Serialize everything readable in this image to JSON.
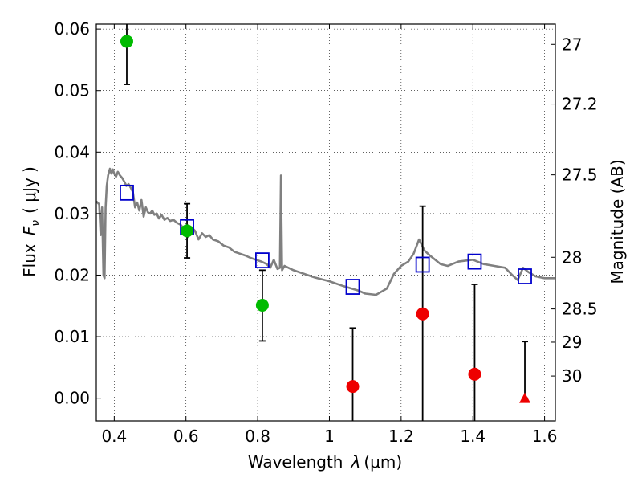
{
  "chart_data": {
    "type": "scatter",
    "xlabel_text": "Wavelength",
    "xlabel_symbol": "λ",
    "xlabel_units": "(μm)",
    "ylabel_text": "Flux",
    "ylabel_symbol": "F",
    "ylabel_subscript": "ν",
    "ylabel_units": "( μJy )",
    "y2label": "Magnitude (AB)",
    "xlim": [
      0.35,
      1.63
    ],
    "ylim": [
      -0.0037,
      0.0608
    ],
    "x_ticks": [
      0.4,
      0.6,
      0.8,
      1.0,
      1.2,
      1.4,
      1.6
    ],
    "x_tick_labels": [
      "0.4",
      "0.6",
      "0.8",
      "1",
      "1.2",
      "1.4",
      "1.6"
    ],
    "y_ticks": [
      0.0,
      0.01,
      0.02,
      0.03,
      0.04,
      0.05,
      0.06
    ],
    "y_tick_labels": [
      "0.00",
      "0.01",
      "0.02",
      "0.03",
      "0.04",
      "0.05",
      "0.06"
    ],
    "y2_ticks": [
      {
        "label": "27",
        "flux": 0.0575
      },
      {
        "label": "27.2",
        "flux": 0.0478
      },
      {
        "label": "27.5",
        "flux": 0.0363
      },
      {
        "label": "28",
        "flux": 0.0229
      },
      {
        "label": "28.5",
        "flux": 0.0145
      },
      {
        "label": "29",
        "flux": 0.0091
      },
      {
        "label": "30",
        "flux": 0.0036
      }
    ],
    "grid": true,
    "colors": {
      "spectrum": "#808080",
      "model_markers": "#0000cc",
      "detections": "#00bb00",
      "nondetections": "#ee0000",
      "errorbars": "#000000"
    },
    "spectrum": {
      "x": [
        0.35,
        0.358,
        0.362,
        0.366,
        0.37,
        0.373,
        0.376,
        0.379,
        0.383,
        0.388,
        0.392,
        0.396,
        0.4,
        0.405,
        0.41,
        0.416,
        0.422,
        0.428,
        0.434,
        0.44,
        0.446,
        0.452,
        0.458,
        0.464,
        0.47,
        0.476,
        0.482,
        0.488,
        0.494,
        0.5,
        0.506,
        0.512,
        0.518,
        0.525,
        0.532,
        0.54,
        0.548,
        0.556,
        0.565,
        0.575,
        0.585,
        0.595,
        0.605,
        0.615,
        0.625,
        0.635,
        0.645,
        0.655,
        0.665,
        0.675,
        0.69,
        0.705,
        0.72,
        0.735,
        0.75,
        0.765,
        0.78,
        0.795,
        0.81,
        0.825,
        0.835,
        0.845,
        0.855,
        0.862,
        0.865,
        0.868,
        0.875,
        0.9,
        0.93,
        0.96,
        1.0,
        1.04,
        1.08,
        1.1,
        1.13,
        1.16,
        1.18,
        1.2,
        1.22,
        1.235,
        1.25,
        1.265,
        1.28,
        1.295,
        1.31,
        1.33,
        1.36,
        1.4,
        1.43,
        1.46,
        1.49,
        1.51,
        1.525,
        1.54,
        1.555,
        1.575,
        1.6,
        1.63
      ],
      "y": [
        0.032,
        0.0315,
        0.0265,
        0.031,
        0.02,
        0.0195,
        0.031,
        0.0345,
        0.0362,
        0.0373,
        0.0365,
        0.0372,
        0.0365,
        0.036,
        0.0368,
        0.0362,
        0.0358,
        0.0352,
        0.0345,
        0.0348,
        0.0342,
        0.0335,
        0.031,
        0.0318,
        0.0305,
        0.0322,
        0.0295,
        0.031,
        0.0302,
        0.03,
        0.0305,
        0.0298,
        0.03,
        0.0292,
        0.0298,
        0.029,
        0.0293,
        0.0288,
        0.029,
        0.0285,
        0.0282,
        0.0275,
        0.0262,
        0.0278,
        0.0272,
        0.0258,
        0.0268,
        0.0262,
        0.0265,
        0.0258,
        0.0255,
        0.0248,
        0.0245,
        0.0238,
        0.0235,
        0.0232,
        0.0228,
        0.0225,
        0.0222,
        0.0218,
        0.0212,
        0.0225,
        0.021,
        0.0212,
        0.0362,
        0.0208,
        0.0215,
        0.0208,
        0.0202,
        0.0196,
        0.019,
        0.0182,
        0.0175,
        0.017,
        0.0168,
        0.0178,
        0.0202,
        0.0215,
        0.0222,
        0.0235,
        0.0258,
        0.024,
        0.0232,
        0.0225,
        0.0218,
        0.0215,
        0.0222,
        0.0225,
        0.0218,
        0.0215,
        0.0212,
        0.02,
        0.0192,
        0.0212,
        0.0205,
        0.0198,
        0.0195,
        0.0195
      ]
    },
    "model_points": [
      {
        "x": 0.435,
        "y": 0.0334
      },
      {
        "x": 0.603,
        "y": 0.0278
      },
      {
        "x": 0.813,
        "y": 0.0224
      },
      {
        "x": 1.065,
        "y": 0.0181
      },
      {
        "x": 1.26,
        "y": 0.0217
      },
      {
        "x": 1.405,
        "y": 0.0222
      },
      {
        "x": 1.545,
        "y": 0.0198
      }
    ],
    "detections": [
      {
        "x": 0.435,
        "y": 0.058,
        "err_low": 0.051,
        "err_high": 0.0608
      },
      {
        "x": 0.603,
        "y": 0.0272,
        "err_low": 0.0228,
        "err_high": 0.0316
      },
      {
        "x": 0.813,
        "y": 0.0151,
        "err_low": 0.0093,
        "err_high": 0.0208
      }
    ],
    "nondetections": [
      {
        "x": 1.065,
        "y": 0.0019,
        "err_low": -0.0037,
        "err_high": 0.0114
      },
      {
        "x": 1.26,
        "y": 0.0137,
        "err_low": -0.0037,
        "err_high": 0.0312
      },
      {
        "x": 1.405,
        "y": 0.0039,
        "err_low": -0.0037,
        "err_high": 0.0185
      }
    ],
    "upper_limits": [
      {
        "x": 1.545,
        "y": 0.0,
        "err_low": 0.0,
        "err_high": 0.0092
      }
    ]
  }
}
